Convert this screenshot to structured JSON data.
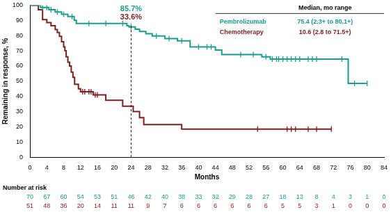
{
  "chart_data": {
    "type": "line",
    "x_label": "Months",
    "y_label": "Remaining in response, %",
    "xlim": [
      0,
      84
    ],
    "xticks": [
      0,
      4,
      8,
      12,
      16,
      20,
      24,
      28,
      32,
      36,
      40,
      44,
      48,
      52,
      56,
      60,
      64,
      68,
      72,
      76,
      80,
      84
    ],
    "ylim": [
      0,
      100
    ],
    "yticks": [
      0,
      10,
      20,
      30,
      40,
      50,
      60,
      70,
      80,
      90,
      100
    ],
    "grid": false,
    "median_header": "Median, mo range",
    "at_risk_title": "Number at risk",
    "at_risk_x": [
      0,
      4,
      8,
      12,
      16,
      20,
      24,
      28,
      32,
      36,
      40,
      44,
      48,
      52,
      56,
      60,
      64,
      68,
      72,
      76,
      80,
      84
    ],
    "annotation": {
      "x": 24,
      "labels": [
        "85.7%",
        "33.6%"
      ]
    },
    "series": [
      {
        "name": "Pembrolizumab",
        "color": "#1a9c8c",
        "line_style": "step",
        "marker": "line",
        "median": "75.4 (2.3+ to 80.1+)",
        "x": [
          0,
          2.5,
          4.5,
          6,
          7.5,
          9,
          10.5,
          11,
          23,
          23.5,
          25,
          26,
          27.5,
          29,
          32,
          35,
          38,
          44,
          45.5,
          55,
          57,
          75.5,
          80
        ],
        "values": [
          100,
          98.5,
          97,
          95.5,
          94,
          92.5,
          90,
          88,
          86.5,
          85.7,
          84.2,
          82.7,
          81.2,
          79.7,
          78,
          76.5,
          72.5,
          70.5,
          67.5,
          66,
          64.5,
          48.5,
          48.5
        ],
        "censored_x": [
          3,
          4,
          5,
          6.5,
          8,
          10,
          14,
          18,
          22,
          24,
          30,
          33,
          36,
          40,
          42,
          43,
          50,
          53,
          56,
          57.5,
          58.5,
          59,
          60,
          61,
          62,
          63,
          64,
          66,
          67,
          68,
          74,
          77,
          80
        ],
        "at_risk": [
          70,
          67,
          60,
          54,
          53,
          51,
          46,
          42,
          40,
          38,
          33,
          32,
          29,
          28,
          27,
          18,
          13,
          8,
          4,
          3,
          1,
          0
        ]
      },
      {
        "name": "Chemotherapy",
        "color": "#7b1f1f",
        "line_style": "step",
        "marker": "line",
        "median": "10.6 (2.8 to 71.5+)",
        "x": [
          0,
          2,
          3,
          4,
          5,
          6,
          6.5,
          7,
          7.5,
          8,
          8.3,
          8.6,
          9,
          9.4,
          9.8,
          10.2,
          10.6,
          11.5,
          12,
          15,
          18,
          22,
          24.5,
          26,
          27,
          36,
          71.5
        ],
        "values": [
          100,
          97,
          90.5,
          88.5,
          86.5,
          84,
          82,
          79.5,
          76,
          72.5,
          70,
          66,
          62.5,
          60,
          56,
          52.5,
          48,
          45,
          43,
          41,
          37.5,
          33.6,
          30,
          26,
          21.5,
          18.5,
          18.5
        ],
        "censored_x": [
          12.5,
          13,
          14,
          14.5,
          15.5,
          16,
          54,
          61,
          62,
          63,
          66,
          68,
          71.5
        ],
        "at_risk": [
          51,
          48,
          36,
          20,
          14,
          11,
          11,
          9,
          7,
          6,
          6,
          6,
          6,
          6,
          6,
          5,
          5,
          3,
          1,
          0,
          0,
          0
        ]
      }
    ]
  }
}
